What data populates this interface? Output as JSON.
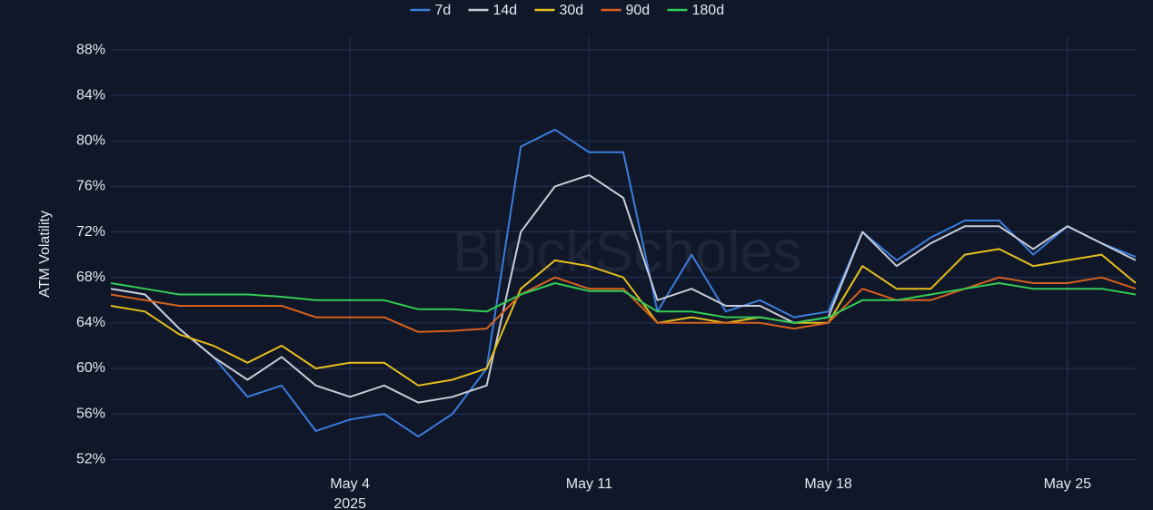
{
  "chart_data": {
    "type": "line",
    "ylabel": "ATM Volatility",
    "watermark": "BlockScholes",
    "x": [
      "2025-04-27",
      "2025-04-28",
      "2025-04-29",
      "2025-04-30",
      "2025-05-01",
      "2025-05-02",
      "2025-05-03",
      "2025-05-04",
      "2025-05-05",
      "2025-05-06",
      "2025-05-07",
      "2025-05-08",
      "2025-05-09",
      "2025-05-10",
      "2025-05-11",
      "2025-05-12",
      "2025-05-13",
      "2025-05-14",
      "2025-05-15",
      "2025-05-16",
      "2025-05-17",
      "2025-05-18",
      "2025-05-19",
      "2025-05-20",
      "2025-05-21",
      "2025-05-22",
      "2025-05-23",
      "2025-05-24",
      "2025-05-25",
      "2025-05-26",
      "2025-05-27"
    ],
    "series": [
      {
        "name": "7d",
        "color": "#3b7ddd",
        "values": [
          67,
          66.5,
          63.5,
          61,
          57.5,
          58.5,
          54.5,
          55.5,
          56,
          54,
          56,
          60,
          79.5,
          81,
          79,
          79,
          65,
          70,
          65,
          66,
          64.5,
          65,
          72,
          69.5,
          71.5,
          73,
          73,
          70,
          72.5,
          71,
          69.8
        ]
      },
      {
        "name": "14d",
        "color": "#c8ccd6",
        "values": [
          67,
          66.5,
          63.5,
          61,
          59,
          61,
          58.5,
          57.5,
          58.5,
          57,
          57.5,
          58.5,
          72,
          76,
          77,
          75,
          66,
          67,
          65.5,
          65.5,
          64,
          64.5,
          72,
          69,
          71,
          72.5,
          72.5,
          70.5,
          72.5,
          71,
          69.5
        ]
      },
      {
        "name": "30d",
        "color": "#e6bf1a",
        "values": [
          65.5,
          65,
          63,
          62,
          60.5,
          62,
          60,
          60.5,
          60.5,
          58.5,
          59,
          60,
          67,
          69.5,
          69,
          68,
          64,
          64.5,
          64,
          64.5,
          64,
          64,
          69,
          67,
          67,
          70,
          70.5,
          69,
          69.5,
          70,
          67.5
        ]
      },
      {
        "name": "90d",
        "color": "#d9621e",
        "values": [
          66.5,
          66,
          65.5,
          65.5,
          65.5,
          65.5,
          64.5,
          64.5,
          64.5,
          63.2,
          63.3,
          63.5,
          66.5,
          68,
          67,
          67,
          64,
          64,
          64,
          64,
          63.5,
          64,
          67,
          66,
          66,
          67,
          68,
          67.5,
          67.5,
          68,
          67
        ]
      },
      {
        "name": "180d",
        "color": "#33cc55",
        "values": [
          67.5,
          67,
          66.5,
          66.5,
          66.5,
          66.3,
          66,
          66,
          66,
          65.2,
          65.2,
          65,
          66.5,
          67.5,
          66.8,
          66.8,
          65,
          65,
          64.5,
          64.5,
          64,
          64.5,
          66,
          66,
          66.5,
          67,
          67.5,
          67,
          67,
          67,
          66.5
        ]
      }
    ],
    "xlim": [
      "2025-04-27",
      "2025-05-27"
    ],
    "xticks": [
      {
        "value": "2025-05-04",
        "label": "May 4",
        "sublabel": "2025"
      },
      {
        "value": "2025-05-11",
        "label": "May 11"
      },
      {
        "value": "2025-05-18",
        "label": "May 18"
      },
      {
        "value": "2025-05-25",
        "label": "May 25"
      }
    ],
    "ylim": [
      50.9,
      89.2
    ],
    "yticks": [
      {
        "value": 52,
        "label": "52%"
      },
      {
        "value": 56,
        "label": "56%"
      },
      {
        "value": 60,
        "label": "60%"
      },
      {
        "value": 64,
        "label": "64%"
      },
      {
        "value": 68,
        "label": "68%"
      },
      {
        "value": 72,
        "label": "72%"
      },
      {
        "value": 76,
        "label": "76%"
      },
      {
        "value": 80,
        "label": "80%"
      },
      {
        "value": 84,
        "label": "84%"
      },
      {
        "value": 88,
        "label": "88%"
      }
    ],
    "grid": true,
    "legend": "top"
  }
}
